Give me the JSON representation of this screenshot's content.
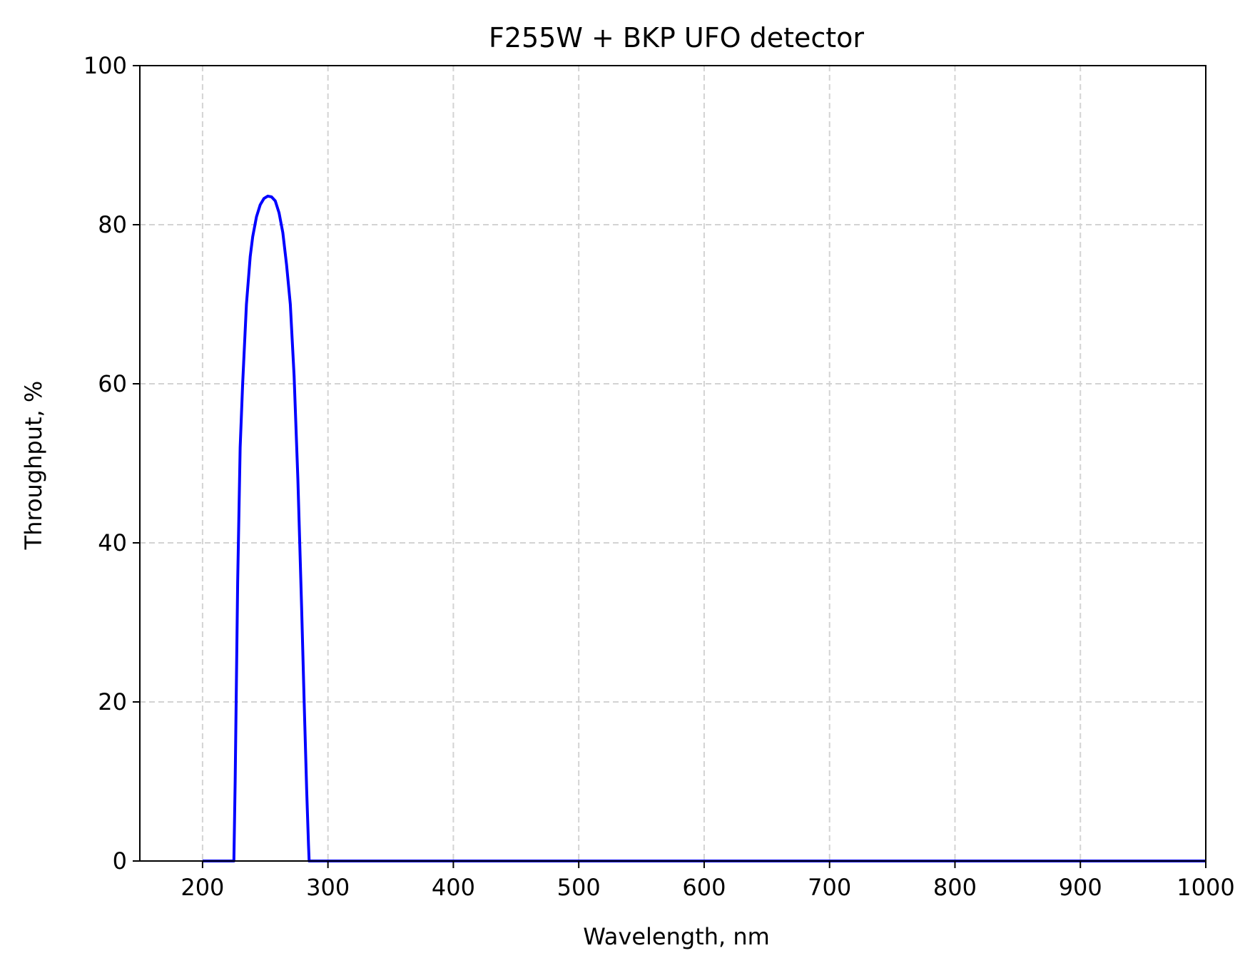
{
  "chart_data": {
    "type": "line",
    "title": "F255W + BKP UFO detector",
    "xlabel": "Wavelength, nm",
    "ylabel": "Throughput, %",
    "xlim": [
      150,
      1000
    ],
    "ylim": [
      0,
      100
    ],
    "x_ticks": [
      200,
      300,
      400,
      500,
      600,
      700,
      800,
      900,
      1000
    ],
    "y_ticks": [
      0,
      20,
      40,
      60,
      80,
      100
    ],
    "grid": true,
    "series": [
      {
        "color": "#0000ff",
        "x": [
          200,
          225,
          226,
          228,
          230,
          232,
          235,
          238,
          240,
          243,
          246,
          249,
          252,
          255,
          258,
          261,
          264,
          267,
          270,
          273,
          276,
          279,
          281,
          283,
          284.5,
          285,
          300,
          400,
          500,
          600,
          700,
          800,
          900,
          1000
        ],
        "y": [
          0,
          0,
          10,
          35,
          52,
          60,
          70,
          76,
          78.5,
          81,
          82.5,
          83.3,
          83.6,
          83.5,
          83,
          81.5,
          79,
          75,
          70,
          61,
          48,
          32,
          20,
          9,
          2,
          0,
          0,
          0,
          0,
          0,
          0,
          0,
          0,
          0
        ]
      }
    ]
  },
  "colors": {
    "line": "#0000ff",
    "grid": "#d3d3d3",
    "axes": "#000000"
  }
}
